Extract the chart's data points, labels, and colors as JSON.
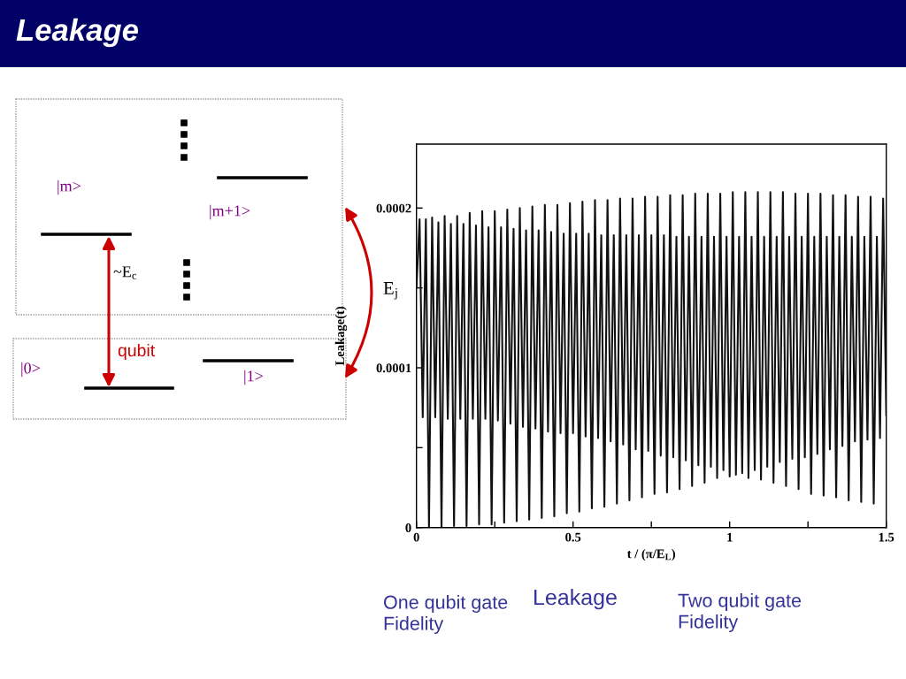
{
  "chart_data": [
    {
      "type": "other",
      "title": "Leakage",
      "annotations": [
        "|m>",
        "|m+1>",
        "~E$_{c}$",
        "qubit",
        "|0>",
        "|1>",
        "E$_{j}$"
      ]
    },
    {
      "type": "line",
      "xlabel": "t / (π/E$_{L}$)",
      "ylabel": "Leakage(t)",
      "annotations": [
        "One qubit gate\nFidelity",
        "Leakage",
        "Two qubit gate\nFidelity"
      ],
      "xlim": [
        0,
        1.5
      ],
      "ylim": [
        0,
        0.00024
      ],
      "xticks": [
        0,
        {
          "value": 0.25,
          "label": null
        },
        0.5,
        {
          "value": 0.75,
          "label": null
        },
        1,
        {
          "value": 1.25,
          "label": null
        },
        1.5
      ],
      "yticks": [
        0,
        {
          "value": 5e-05,
          "label": null
        },
        0.0001,
        {
          "value": 0.00015,
          "label": null
        },
        0.0002
      ],
      "x": [
        0,
        0.01,
        0.02,
        0.03,
        0.04,
        0.05,
        0.06,
        0.07,
        0.08,
        0.09,
        0.1,
        0.11,
        0.12,
        0.13,
        0.14,
        0.15,
        0.16,
        0.17,
        0.18,
        0.19,
        0.2,
        0.21,
        0.22,
        0.23,
        0.24,
        0.25,
        0.26,
        0.27,
        0.28,
        0.29,
        0.3,
        0.31,
        0.32,
        0.33,
        0.34,
        0.35,
        0.36,
        0.37,
        0.38,
        0.39,
        0.4,
        0.41,
        0.42,
        0.43,
        0.44,
        0.45,
        0.46,
        0.47,
        0.48,
        0.49,
        0.5,
        0.51,
        0.52,
        0.53,
        0.54,
        0.55,
        0.56,
        0.57,
        0.58,
        0.59,
        0.6,
        0.61,
        0.62,
        0.63,
        0.64,
        0.65,
        0.66,
        0.67,
        0.68,
        0.69,
        0.7,
        0.71,
        0.72,
        0.73,
        0.74,
        0.75,
        0.76,
        0.77,
        0.78,
        0.79,
        0.8,
        0.81,
        0.82,
        0.83,
        0.84,
        0.85,
        0.86,
        0.87,
        0.88,
        0.89,
        0.9,
        0.91,
        0.92,
        0.93,
        0.94,
        0.95,
        0.96,
        0.97,
        0.98,
        0.99,
        1,
        1.01,
        1.02,
        1.03,
        1.04,
        1.05,
        1.06,
        1.07,
        1.08,
        1.09,
        1.1,
        1.11,
        1.12,
        1.13,
        1.14,
        1.15,
        1.16,
        1.17,
        1.18,
        1.19,
        1.2,
        1.21,
        1.22,
        1.23,
        1.24,
        1.25,
        1.26,
        1.27,
        1.28,
        1.29,
        1.3,
        1.31,
        1.32,
        1.33,
        1.34,
        1.35,
        1.36,
        1.37,
        1.38,
        1.39,
        1.4,
        1.41,
        1.42,
        1.43,
        1.44,
        1.45,
        1.46,
        1.47,
        1.48,
        1.49,
        1.5
      ],
      "series": [
        {
          "color": "#111111",
          "values": [
            0.00015,
            0.000193,
            6.9e-05,
            0.000193,
            0,
            0.000194,
            6.9e-05,
            0.000191,
            0,
            0.000195,
            6.8e-05,
            0.00019,
            1e-06,
            0.000195,
            6.8e-05,
            0.00019,
            1e-06,
            0.000197,
            6.8e-05,
            0.000189,
            2e-06,
            0.000198,
            6.8e-05,
            0.000188,
            2e-06,
            0.000198,
            6.7e-05,
            0.000188,
            3e-06,
            0.000199,
            6.5e-05,
            0.000187,
            4e-06,
            0.0002,
            6.3e-05,
            0.000186,
            5e-06,
            0.000201,
            6.2e-05,
            0.000186,
            6e-06,
            0.000202,
            6e-05,
            0.000185,
            7e-06,
            0.000202,
            5.9e-05,
            0.000184,
            9e-06,
            0.000203,
            5.9e-05,
            0.000184,
            1e-05,
            0.000204,
            5.7e-05,
            0.000184,
            1.2e-05,
            0.000205,
            5.6e-05,
            0.000183,
            1.3e-05,
            0.000205,
            5.4e-05,
            0.000183,
            1.5e-05,
            0.000206,
            5.2e-05,
            0.000183,
            1.7e-05,
            0.000206,
            4.9e-05,
            0.000183,
            1.9e-05,
            0.000207,
            4.8e-05,
            0.000183,
            2.1e-05,
            0.000207,
            4.5e-05,
            0.000183,
            2.2e-05,
            0.000208,
            4.4e-05,
            0.000182,
            2.4e-05,
            0.000208,
            4.2e-05,
            0.000182,
            2.6e-05,
            0.000209,
            3.9e-05,
            0.000182,
            2.8e-05,
            0.000209,
            3.8e-05,
            0.000182,
            3.1e-05,
            0.000209,
            3.6e-05,
            0.000182,
            3.2e-05,
            0.00021,
            3.3e-05,
            0.000182,
            3.4e-05,
            0.00021,
            3.1e-05,
            0.000182,
            3.6e-05,
            0.00021,
            3e-05,
            0.000182,
            3.8e-05,
            0.00021,
            2.8e-05,
            0.000182,
            4.1e-05,
            0.00021,
            2.6e-05,
            0.000182,
            4.3e-05,
            0.000209,
            2.4e-05,
            0.000182,
            4.4e-05,
            0.000209,
            2.1e-05,
            0.000182,
            4.6e-05,
            0.000209,
            2e-05,
            0.000182,
            4.9e-05,
            0.000208,
            1.9e-05,
            0.000182,
            5.1e-05,
            0.000208,
            1.7e-05,
            0.000182,
            5.4e-05,
            0.000207,
            1.6e-05,
            0.000182,
            5.5e-05,
            0.000207,
            1.5e-05,
            0.000182,
            5.6e-05,
            0.000206,
            7e-05
          ]
        }
      ]
    }
  ]
}
